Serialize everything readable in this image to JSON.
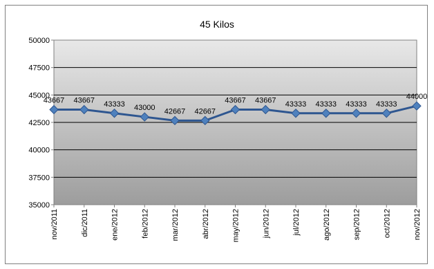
{
  "chart_data": {
    "type": "line",
    "title": "45 Kilos",
    "xlabel": "",
    "ylabel": "",
    "categories": [
      "nov/2011",
      "dic/2011",
      "ene/2012",
      "feb/2012",
      "mar/2012",
      "abr/2012",
      "may/2012",
      "jun/2012",
      "jul/2012",
      "ago/2012",
      "sep/2012",
      "oct/2012",
      "nov/2012"
    ],
    "series": [
      {
        "values": [
          43667,
          43667,
          43333,
          43000,
          42667,
          42667,
          43667,
          43667,
          43333,
          43333,
          43333,
          43333,
          44000
        ],
        "data_labels": [
          "43667",
          "43667",
          "43333",
          "43000",
          "42667",
          "42667",
          "43667",
          "43667",
          "43333",
          "43333",
          "43333",
          "43333",
          "44000"
        ],
        "color": "#2e5690",
        "marker": "diamond",
        "marker_color": "#4f81bd"
      }
    ],
    "ylim": [
      35000,
      50000
    ],
    "yticks": [
      "35000",
      "37500",
      "40000",
      "42500",
      "45000",
      "47500",
      "50000"
    ],
    "grid": true,
    "legend": "none",
    "plot_background": [
      "#e8e8e8",
      "#9d9d9d"
    ]
  }
}
